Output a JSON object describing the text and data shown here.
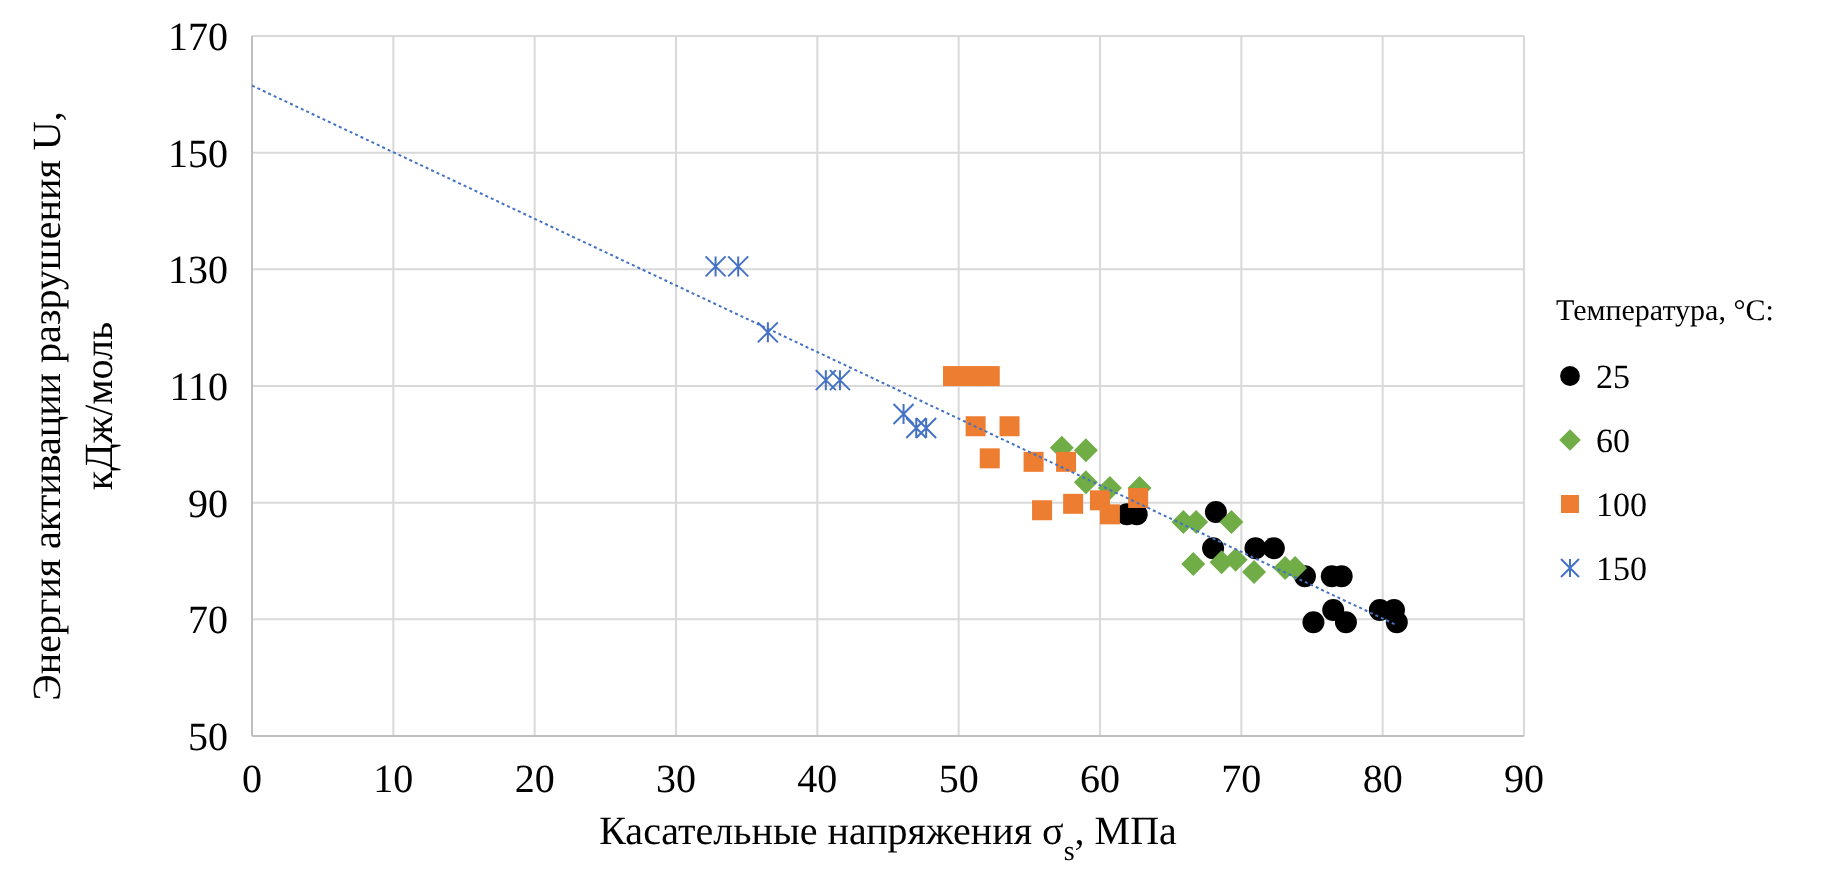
{
  "chart_data": {
    "type": "scatter",
    "xlabel": "Касательные напряжения σ$_{s}$, МПа",
    "ylabel": "Энергия активации разрушения U,\nкДж/моль",
    "legend_title": "Температура, °C:",
    "xlim": [
      0,
      90
    ],
    "ylim": [
      50,
      170
    ],
    "xticks": [
      0,
      10,
      20,
      30,
      40,
      50,
      60,
      70,
      80,
      90
    ],
    "yticks": [
      50,
      70,
      90,
      110,
      130,
      150,
      170
    ],
    "grid": true,
    "legend": "right",
    "series": [
      {
        "name": "25",
        "color": "#000000",
        "marker": "circle",
        "x": [
          61.9,
          62.6,
          68.2,
          68,
          71,
          72.3,
          74.5,
          76.4,
          77.1,
          75.1,
          76.5,
          77.4,
          79.8,
          80.8,
          81
        ],
        "values": [
          88,
          88,
          88.4,
          82.2,
          82.2,
          82.2,
          77.4,
          77.4,
          77.4,
          69.5,
          71.6,
          69.5,
          71.6,
          71.6,
          69.5
        ]
      },
      {
        "name": "60",
        "color": "#70ad47",
        "marker": "diamond",
        "x": [
          57.3,
          59,
          59,
          60.7,
          62.8,
          65.9,
          66.8,
          69.3,
          66.6,
          68.6,
          69.6,
          70.9,
          73.1,
          73.8
        ],
        "values": [
          99.4,
          99,
          93.5,
          92.5,
          92.5,
          86.7,
          86.7,
          86.7,
          79.5,
          79.8,
          80.2,
          78.1,
          78.8,
          78.8
        ]
      },
      {
        "name": "100",
        "color": "#ed7d31",
        "marker": "square",
        "x": [
          49.6,
          51,
          52.2,
          51.2,
          53.6,
          52.2,
          55.3,
          57.6,
          55.9,
          58.1,
          60,
          60.7,
          62.7
        ],
        "values": [
          111.7,
          111.7,
          111.7,
          103.1,
          103.1,
          97.6,
          97,
          97,
          88.7,
          89.8,
          90.4,
          88,
          90.8
        ]
      },
      {
        "name": "150",
        "color": "#4472c4",
        "marker": "cross",
        "x": [
          32.8,
          34.4,
          36.5,
          40.6,
          41.6,
          46.1,
          47,
          47.7
        ],
        "values": [
          130.5,
          130.5,
          119.2,
          111,
          111,
          105.2,
          102.8,
          102.8
        ]
      },
      {
        "type": "line",
        "color": "#4472c4",
        "line_style": "dotted",
        "marker": "none",
        "x": [
          0,
          81
        ],
        "values": [
          161.5,
          69
        ]
      }
    ]
  }
}
